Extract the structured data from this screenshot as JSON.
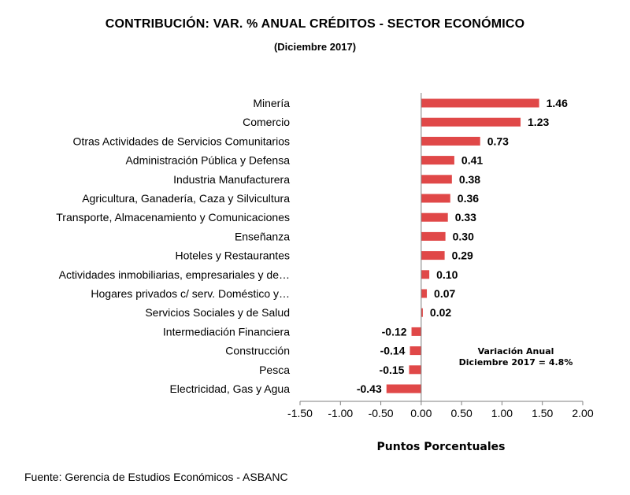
{
  "chart_data": {
    "type": "bar",
    "orientation": "horizontal",
    "title": "CONTRIBUCIÓN: VAR. % ANUAL CRÉDITOS - SECTOR ECONÓMICO",
    "subtitle": "(Diciembre 2017)",
    "xlabel": "Puntos Porcentuales",
    "ylabel": "",
    "xlim": [
      -1.5,
      2.0
    ],
    "xticks": [
      "-1.50",
      "-1.00",
      "-0.50",
      "0.00",
      "0.50",
      "1.00",
      "1.50",
      "2.00"
    ],
    "categories": [
      "Minería",
      "Comercio",
      "Otras Actividades de Servicios Comunitarios",
      "Administración Pública y Defensa",
      "Industria Manufacturera",
      "Agricultura, Ganadería, Caza y Silvicultura",
      "Transporte, Almacenamiento y Comunicaciones",
      "Enseñanza",
      "Hoteles y Restaurantes",
      "Actividades inmobiliarias, empresariales y de…",
      "Hogares privados c/ serv. Doméstico y…",
      "Servicios Sociales y de Salud",
      "Intermediación Financiera",
      "Construcción",
      "Pesca",
      "Electricidad, Gas y Agua"
    ],
    "values": [
      1.46,
      1.23,
      0.73,
      0.41,
      0.38,
      0.36,
      0.33,
      0.3,
      0.29,
      0.1,
      0.07,
      0.02,
      -0.12,
      -0.14,
      -0.15,
      -0.43
    ],
    "data_labels": [
      "1.46",
      "1.23",
      "0.73",
      "0.41",
      "0.38",
      "0.36",
      "0.33",
      "0.30",
      "0.29",
      "0.10",
      "0.07",
      "0.02",
      "-0.12",
      "-0.14",
      "-0.15",
      "-0.43"
    ],
    "bar_color": "#e04848",
    "grid": false,
    "legend": "none"
  },
  "annotation": {
    "line1": "Variación Anual",
    "line2": "Diciembre 2017 = 4.8%"
  },
  "footer": "Fuente: Gerencia de Estudios Económicos - ASBANC"
}
